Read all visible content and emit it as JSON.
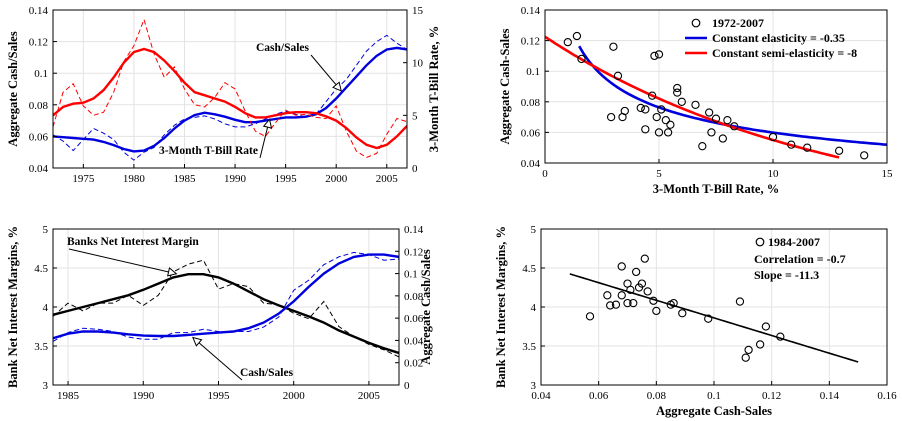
{
  "chart_data": [
    {
      "id": "p1",
      "type": "line",
      "xlabel": "",
      "ylabel": "Aggregate Cash/Sales",
      "ylabel_right": "3-Month T-Bill Rate, %",
      "xlim": [
        1972,
        2007
      ],
      "ylim": [
        0.04,
        0.14
      ],
      "ylim_right": [
        0,
        15
      ],
      "xticks": [
        1975,
        1980,
        1985,
        1990,
        1995,
        2000,
        2005
      ],
      "yticks": [
        0.04,
        0.06,
        0.08,
        0.1,
        0.12,
        0.14
      ],
      "yticks_right": [
        0,
        5,
        10,
        15
      ],
      "grid": true,
      "annotations": [
        {
          "text": "Cash/Sales",
          "series": "cash_smooth",
          "at_x": 2000.5
        },
        {
          "text": "3-Month T-Bill Rate",
          "series": "tbill_smooth",
          "at_x": 1994
        }
      ],
      "series": [
        {
          "key": "cash_raw",
          "color": "#0000dd",
          "dashed": true,
          "axis": "left",
          "x": [
            1972,
            1973,
            1974,
            1975,
            1976,
            1977,
            1978,
            1979,
            1980,
            1981,
            1982,
            1983,
            1984,
            1985,
            1986,
            1987,
            1988,
            1989,
            1990,
            1991,
            1992,
            1993,
            1994,
            1995,
            1996,
            1997,
            1998,
            1999,
            2000,
            2001,
            2002,
            2003,
            2004,
            2005,
            2006,
            2007
          ],
          "y": [
            0.061,
            0.057,
            0.051,
            0.058,
            0.065,
            0.062,
            0.058,
            0.05,
            0.045,
            0.05,
            0.053,
            0.061,
            0.067,
            0.071,
            0.072,
            0.073,
            0.071,
            0.068,
            0.066,
            0.066,
            0.068,
            0.071,
            0.074,
            0.076,
            0.074,
            0.072,
            0.074,
            0.082,
            0.09,
            0.096,
            0.105,
            0.114,
            0.12,
            0.124,
            0.119,
            0.115
          ]
        },
        {
          "key": "cash_smooth",
          "color": "#0000dd",
          "dashed": false,
          "axis": "left",
          "x": [
            1972,
            1973,
            1974,
            1975,
            1976,
            1977,
            1978,
            1979,
            1980,
            1981,
            1982,
            1983,
            1984,
            1985,
            1986,
            1987,
            1988,
            1989,
            1990,
            1991,
            1992,
            1993,
            1994,
            1995,
            1996,
            1997,
            1998,
            1999,
            2000,
            2001,
            2002,
            2003,
            2004,
            2005,
            2006,
            2007
          ],
          "y": [
            0.06,
            0.0595,
            0.059,
            0.0585,
            0.058,
            0.0565,
            0.0545,
            0.052,
            0.0505,
            0.051,
            0.054,
            0.059,
            0.065,
            0.07,
            0.0735,
            0.075,
            0.074,
            0.0725,
            0.0705,
            0.069,
            0.069,
            0.07,
            0.071,
            0.072,
            0.072,
            0.0725,
            0.074,
            0.078,
            0.084,
            0.091,
            0.098,
            0.105,
            0.111,
            0.115,
            0.116,
            0.115
          ]
        },
        {
          "key": "tbill_raw",
          "color": "#ff0000",
          "dashed": true,
          "axis": "right",
          "x": [
            1972,
            1973,
            1974,
            1975,
            1976,
            1977,
            1978,
            1979,
            1980,
            1981,
            1982,
            1983,
            1984,
            1985,
            1986,
            1987,
            1988,
            1989,
            1990,
            1991,
            1992,
            1993,
            1994,
            1995,
            1996,
            1997,
            1998,
            1999,
            2000,
            2001,
            2002,
            2003,
            2004,
            2005,
            2006,
            2007
          ],
          "y": [
            3.9,
            7.2,
            8.0,
            5.9,
            5.0,
            5.3,
            7.2,
            10.1,
            11.6,
            14.1,
            10.8,
            8.6,
            9.6,
            7.5,
            6.0,
            5.8,
            6.7,
            8.1,
            7.5,
            5.4,
            3.5,
            3.0,
            4.3,
            5.5,
            5.0,
            5.1,
            4.8,
            4.7,
            5.9,
            3.5,
            1.6,
            1.0,
            1.4,
            3.2,
            4.7,
            4.4
          ]
        },
        {
          "key": "tbill_smooth",
          "color": "#ff0000",
          "dashed": false,
          "axis": "right",
          "x": [
            1972,
            1973,
            1974,
            1975,
            1976,
            1977,
            1978,
            1979,
            1980,
            1981,
            1982,
            1983,
            1984,
            1985,
            1986,
            1987,
            1988,
            1989,
            1990,
            1991,
            1992,
            1993,
            1994,
            1995,
            1996,
            1997,
            1998,
            1999,
            2000,
            2001,
            2002,
            2003,
            2004,
            2005,
            2006,
            2007
          ],
          "y": [
            5.0,
            5.8,
            6.1,
            6.2,
            6.6,
            7.4,
            8.6,
            10.0,
            11.0,
            11.3,
            11.0,
            10.2,
            9.2,
            8.1,
            7.2,
            6.9,
            6.6,
            6.3,
            5.8,
            5.2,
            4.8,
            4.8,
            5.0,
            5.2,
            5.3,
            5.3,
            5.2,
            4.9,
            4.5,
            3.8,
            2.9,
            2.2,
            1.9,
            2.2,
            3.0,
            4.0
          ]
        }
      ]
    },
    {
      "id": "p2",
      "type": "scatter",
      "xlabel": "3-Month T-Bill Rate, %",
      "ylabel": "Aggregate Cash-Sales",
      "xlim": [
        0,
        15
      ],
      "ylim": [
        0.04,
        0.14
      ],
      "xticks": [
        0,
        5,
        10,
        15
      ],
      "yticks": [
        0.04,
        0.06,
        0.08,
        0.1,
        0.12,
        0.14
      ],
      "grid": true,
      "legend": {
        "position": "top-right",
        "entries": [
          {
            "label": "1972-2007",
            "marker": "circle",
            "color": "#000000"
          },
          {
            "label": "Constant elasticity = -0.35",
            "line": true,
            "color": "#0000dd"
          },
          {
            "label": "Constant semi-elasticity = -8",
            "line": true,
            "color": "#ff0000"
          }
        ]
      },
      "points": {
        "x": [
          1.0,
          1.4,
          1.6,
          3.0,
          3.2,
          3.5,
          5.8,
          5.8,
          6.0,
          5.1,
          3.4,
          4.4,
          4.8,
          5.0,
          2.9,
          4.2,
          4.7,
          5.3,
          5.5,
          6.6,
          5.4,
          5.0,
          4.9,
          4.4,
          7.5,
          7.3,
          7.8,
          8.3,
          6.9,
          8.0,
          10.0,
          10.8,
          11.5,
          12.9,
          14.0,
          7.2
        ],
        "y": [
          0.119,
          0.123,
          0.108,
          0.116,
          0.097,
          0.074,
          0.089,
          0.086,
          0.08,
          0.075,
          0.07,
          0.062,
          0.11,
          0.111,
          0.07,
          0.076,
          0.084,
          0.068,
          0.065,
          0.078,
          0.06,
          0.06,
          0.07,
          0.075,
          0.069,
          0.06,
          0.056,
          0.064,
          0.051,
          0.068,
          0.057,
          0.052,
          0.05,
          0.048,
          0.045,
          0.073
        ]
      },
      "series": [
        {
          "key": "const_elasticity",
          "name": "Constant elasticity = -0.35",
          "color": "#0000dd",
          "func": "power",
          "a": 0.1341,
          "b": -0.35,
          "x_from": 1.5,
          "x_to": 15
        },
        {
          "key": "const_semi",
          "name": "Constant semi-elasticity = -8",
          "color": "#ff0000",
          "func": "exp",
          "a": 0.1225,
          "b": -0.08,
          "x_from": 0,
          "x_to": 12.9
        }
      ]
    },
    {
      "id": "p3",
      "type": "line",
      "xlabel": "",
      "ylabel": "Bank Net Interest Margins, %",
      "ylabel_right": "Aggregate Cash/Sales",
      "xlim": [
        1984,
        2007
      ],
      "ylim": [
        3,
        5
      ],
      "ylim_right": [
        0,
        0.14
      ],
      "xticks": [
        1985,
        1990,
        1995,
        2000,
        2005
      ],
      "yticks": [
        3,
        3.5,
        4,
        4.5,
        5
      ],
      "yticks_right": [
        0,
        0.02,
        0.04,
        0.06,
        0.08,
        0.1,
        0.12,
        0.14
      ],
      "grid": true,
      "annotations": [
        {
          "text": "Banks Net Interest Margin",
          "series": "nim_smooth",
          "at_x": 1989.5
        },
        {
          "text": "Cash/Sales",
          "series": "cash_smooth",
          "at_x": 1989.5
        }
      ],
      "series": [
        {
          "key": "nim_raw",
          "color": "#000000",
          "dashed": true,
          "axis": "left",
          "x": [
            1984,
            1985,
            1986,
            1987,
            1988,
            1989,
            1990,
            1991,
            1992,
            1993,
            1994,
            1995,
            1996,
            1997,
            1998,
            1999,
            2000,
            2001,
            2002,
            2003,
            2004,
            2005,
            2006,
            2007
          ],
          "y": [
            3.88,
            4.05,
            3.95,
            4.05,
            4.05,
            4.15,
            4.02,
            4.15,
            4.45,
            4.55,
            4.6,
            4.23,
            4.3,
            4.26,
            4.05,
            4.03,
            3.92,
            3.85,
            4.07,
            3.75,
            3.62,
            3.52,
            3.45,
            3.36
          ]
        },
        {
          "key": "nim_smooth",
          "color": "#000000",
          "dashed": false,
          "axis": "left",
          "x": [
            1984,
            1985,
            1986,
            1987,
            1988,
            1989,
            1990,
            1991,
            1992,
            1993,
            1994,
            1995,
            1996,
            1997,
            1998,
            1999,
            2000,
            2001,
            2002,
            2003,
            2004,
            2005,
            2006,
            2007
          ],
          "y": [
            3.9,
            3.95,
            4.0,
            4.05,
            4.1,
            4.15,
            4.22,
            4.3,
            4.38,
            4.42,
            4.42,
            4.38,
            4.3,
            4.2,
            4.1,
            4.02,
            3.95,
            3.88,
            3.8,
            3.7,
            3.62,
            3.54,
            3.47,
            3.41
          ]
        },
        {
          "key": "cash_raw",
          "color": "#0000dd",
          "dashed": true,
          "axis": "right",
          "x": [
            1984,
            1985,
            1986,
            1987,
            1988,
            1989,
            1990,
            1991,
            1992,
            1993,
            1994,
            1995,
            1996,
            1997,
            1998,
            1999,
            2000,
            2001,
            2002,
            2003,
            2004,
            2005,
            2006,
            2007
          ],
          "y": [
            0.039,
            0.047,
            0.051,
            0.05,
            0.048,
            0.043,
            0.041,
            0.041,
            0.047,
            0.047,
            0.05,
            0.048,
            0.048,
            0.048,
            0.052,
            0.061,
            0.085,
            0.094,
            0.108,
            0.115,
            0.119,
            0.117,
            0.112,
            0.113
          ]
        },
        {
          "key": "cash_smooth",
          "color": "#0000dd",
          "dashed": false,
          "axis": "right",
          "x": [
            1984,
            1985,
            1986,
            1987,
            1988,
            1989,
            1990,
            1991,
            1992,
            1993,
            1994,
            1995,
            1996,
            1997,
            1998,
            1999,
            2000,
            2001,
            2002,
            2003,
            2004,
            2005,
            2006,
            2007
          ],
          "y": [
            0.042,
            0.046,
            0.048,
            0.048,
            0.047,
            0.0455,
            0.0443,
            0.044,
            0.044,
            0.045,
            0.046,
            0.047,
            0.048,
            0.051,
            0.056,
            0.064,
            0.075,
            0.088,
            0.1,
            0.109,
            0.115,
            0.117,
            0.117,
            0.115
          ]
        }
      ]
    },
    {
      "id": "p4",
      "type": "scatter",
      "xlabel": "Aggregate Cash-Sales",
      "ylabel": "Bank Net Interest Margins, %",
      "xlim": [
        0.04,
        0.16
      ],
      "ylim": [
        3,
        5
      ],
      "xticks": [
        0.04,
        0.06,
        0.08,
        0.1,
        0.12,
        0.14,
        0.16
      ],
      "yticks": [
        3,
        3.5,
        4,
        4.5,
        5
      ],
      "grid": true,
      "legend": {
        "position": "top-right",
        "entries": [
          {
            "label": "1984-2007",
            "marker": "circle",
            "color": "#000000"
          }
        ]
      },
      "annotations": [
        {
          "text": "Correlation = -0.7"
        },
        {
          "text": "Slope = -11.3"
        }
      ],
      "points": {
        "x": [
          0.057,
          0.063,
          0.064,
          0.066,
          0.068,
          0.068,
          0.07,
          0.07,
          0.071,
          0.072,
          0.073,
          0.074,
          0.075,
          0.076,
          0.077,
          0.079,
          0.08,
          0.085,
          0.086,
          0.089,
          0.098,
          0.109,
          0.111,
          0.112,
          0.116,
          0.118,
          0.123
        ],
        "y": [
          3.88,
          4.15,
          4.02,
          4.03,
          4.15,
          4.52,
          4.05,
          4.3,
          4.22,
          4.05,
          4.45,
          4.25,
          4.3,
          4.62,
          4.2,
          4.08,
          3.95,
          4.03,
          4.05,
          3.92,
          3.85,
          4.07,
          3.35,
          3.45,
          3.52,
          3.75,
          3.62
        ]
      },
      "series": [
        {
          "key": "fit",
          "color": "#000000",
          "func": "linear",
          "a": 4.99,
          "b": -11.3,
          "x_from": 0.05,
          "x_to": 0.15
        }
      ]
    }
  ]
}
